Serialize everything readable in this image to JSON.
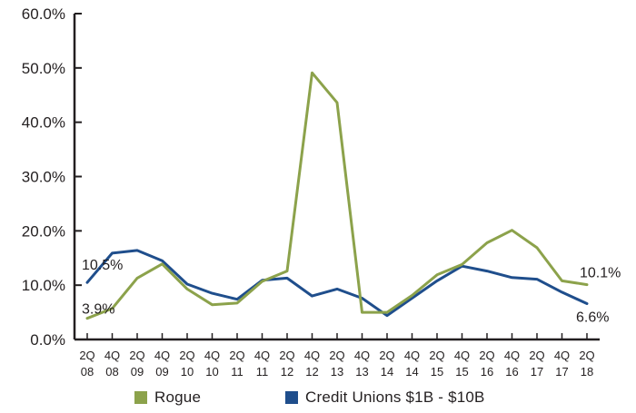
{
  "chart_data": {
    "type": "line",
    "categories": [
      [
        "2Q",
        "08"
      ],
      [
        "4Q",
        "08"
      ],
      [
        "2Q",
        "09"
      ],
      [
        "4Q",
        "09"
      ],
      [
        "2Q",
        "10"
      ],
      [
        "4Q",
        "10"
      ],
      [
        "2Q",
        "11"
      ],
      [
        "4Q",
        "11"
      ],
      [
        "2Q",
        "12"
      ],
      [
        "4Q",
        "12"
      ],
      [
        "2Q",
        "13"
      ],
      [
        "4Q",
        "13"
      ],
      [
        "2Q",
        "14"
      ],
      [
        "4Q",
        "14"
      ],
      [
        "2Q",
        "15"
      ],
      [
        "4Q",
        "15"
      ],
      [
        "2Q",
        "16"
      ],
      [
        "4Q",
        "16"
      ],
      [
        "2Q",
        "17"
      ],
      [
        "4Q",
        "17"
      ],
      [
        "2Q",
        "18"
      ]
    ],
    "series": [
      {
        "name": "Rogue",
        "color": "#8ca24b",
        "values": [
          3.9,
          5.7,
          11.3,
          13.9,
          9.3,
          6.4,
          6.7,
          10.7,
          12.6,
          49.1,
          43.6,
          5.0,
          5.0,
          8.1,
          11.9,
          13.8,
          17.8,
          20.1,
          16.9,
          10.8,
          10.1
        ]
      },
      {
        "name": "Credit Unions $1B - $10B",
        "color": "#1f4e8c",
        "values": [
          10.5,
          15.9,
          16.4,
          14.5,
          10.2,
          8.5,
          7.4,
          10.9,
          11.3,
          8.0,
          9.3,
          7.6,
          4.4,
          7.6,
          10.8,
          13.5,
          12.6,
          11.4,
          11.1,
          8.7,
          6.6
        ]
      }
    ],
    "ylim": [
      0,
      60
    ],
    "yticks": [
      "0.0%",
      "10.0%",
      "20.0%",
      "30.0%",
      "40.0%",
      "50.0%",
      "60.0%"
    ],
    "annotations": [
      {
        "text": "3.9%",
        "series": 0,
        "index": 0
      },
      {
        "text": "10.5%",
        "series": 1,
        "index": 0
      },
      {
        "text": "10.1%",
        "series": 0,
        "index": 20
      },
      {
        "text": "6.6%",
        "series": 1,
        "index": 20
      }
    ],
    "legend": "bottom",
    "grid": false
  }
}
